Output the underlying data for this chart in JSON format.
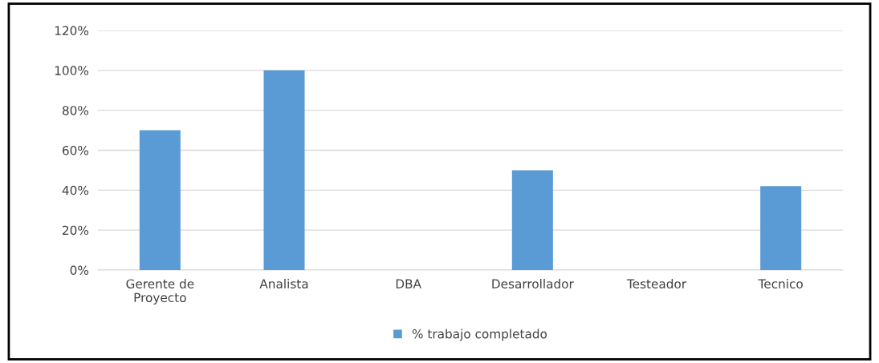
{
  "chart_data": {
    "type": "bar",
    "categories": [
      "Gerente de\nProyecto",
      "Analista",
      "DBA",
      "Desarrollador",
      "Testeador",
      "Tecnico"
    ],
    "series": [
      {
        "name": "% trabajo completado",
        "color": "#5b9bd5",
        "values": [
          70,
          100,
          0,
          50,
          0,
          42
        ]
      }
    ],
    "ylim": [
      0,
      120
    ],
    "yticks": [
      {
        "value": 0,
        "label": "0%"
      },
      {
        "value": 20,
        "label": "20%"
      },
      {
        "value": 40,
        "label": "40%"
      },
      {
        "value": 60,
        "label": "60%"
      },
      {
        "value": 80,
        "label": "80%"
      },
      {
        "value": 100,
        "label": "100%"
      },
      {
        "value": 120,
        "label": "120%"
      }
    ],
    "grid": "y",
    "legend": "bottom"
  }
}
